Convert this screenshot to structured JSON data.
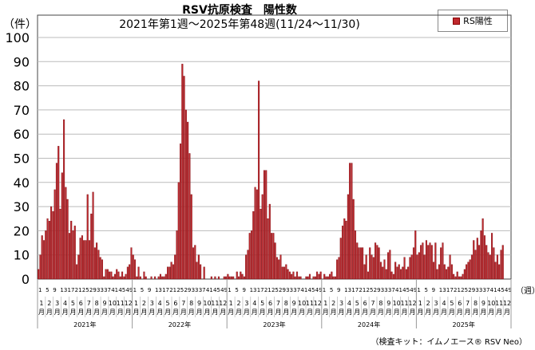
{
  "chart_data": {
    "type": "bar",
    "title": "RSV抗原検査　陽性数",
    "subtitle": "2021年第1週～2025年第48週(11/24～11/30)",
    "ylabel": "（件）",
    "xlabel": "（週）",
    "ylim": [
      0,
      100
    ],
    "yticks": [
      0,
      10,
      20,
      30,
      40,
      50,
      60,
      70,
      80,
      90,
      100
    ],
    "grid": true,
    "legend": {
      "label": "RS陽性",
      "placement": "top-right"
    },
    "week_ticks": [
      "1",
      "5",
      "9",
      "13",
      "17",
      "21",
      "25",
      "29",
      "33",
      "37",
      "41",
      "45",
      "49"
    ],
    "month_ticks": [
      "1",
      "2",
      "3",
      "4",
      "5",
      "6",
      "7",
      "8",
      "9",
      "10",
      "11",
      "12"
    ],
    "month_suffix": "月",
    "color": "#c0282d",
    "footnote": "（検査キット：イムノエース® RSV Neo）",
    "series": [
      {
        "name": "2021年",
        "values": [
          4,
          10,
          18,
          16,
          20,
          25,
          24,
          30,
          28,
          37,
          48,
          55,
          29,
          44,
          66,
          38,
          33,
          19,
          24,
          20,
          22,
          6,
          10,
          17,
          18,
          16,
          16,
          35,
          16,
          27,
          36,
          13,
          15,
          12,
          9,
          8,
          1,
          4,
          4,
          3,
          3,
          1,
          2,
          4,
          3,
          1,
          3,
          1,
          2,
          5,
          6,
          13
        ]
      },
      {
        "name": "2022年",
        "values": [
          10,
          8,
          1,
          5,
          1,
          0,
          3,
          1,
          0,
          0,
          1,
          0,
          1,
          0,
          1,
          2,
          1,
          1,
          2,
          5,
          5,
          7,
          6,
          10,
          20,
          40,
          56,
          89,
          84,
          70,
          65,
          52,
          35,
          13,
          14,
          7,
          10,
          6,
          0,
          5,
          0,
          0,
          0,
          1,
          0,
          1,
          0,
          1,
          0,
          0,
          1,
          1
        ]
      },
      {
        "name": "2023年",
        "values": [
          2,
          1,
          1,
          1,
          0,
          3,
          1,
          3,
          2,
          1,
          10,
          12,
          19,
          20,
          28,
          38,
          37,
          82,
          29,
          35,
          45,
          45,
          25,
          31,
          19,
          19,
          15,
          9,
          8,
          10,
          5,
          5,
          6,
          4,
          3,
          2,
          3,
          1,
          3,
          1,
          1,
          0,
          0,
          1,
          1,
          2,
          0,
          1,
          1,
          3,
          2,
          3
        ]
      },
      {
        "name": "2024年",
        "values": [
          0,
          2,
          1,
          1,
          2,
          3,
          1,
          1,
          8,
          9,
          17,
          22,
          25,
          24,
          35,
          48,
          48,
          33,
          20,
          15,
          13,
          13,
          13,
          6,
          10,
          3,
          13,
          10,
          9,
          15,
          14,
          13,
          7,
          5,
          8,
          4,
          11,
          12,
          3,
          2,
          7,
          5,
          6,
          4,
          5,
          9,
          4,
          5,
          9,
          10,
          13,
          20
        ]
      },
      {
        "name": "2025年",
        "values": [
          10,
          11,
          14,
          15,
          10,
          16,
          14,
          15,
          14,
          7,
          15,
          4,
          6,
          13,
          15,
          6,
          4,
          5,
          10,
          6,
          2,
          1,
          3,
          1,
          1,
          2,
          4,
          6,
          7,
          8,
          10,
          16,
          12,
          17,
          14,
          20,
          25,
          18,
          14,
          11,
          10,
          19,
          13,
          7,
          10,
          6,
          12,
          14
        ]
      }
    ]
  }
}
